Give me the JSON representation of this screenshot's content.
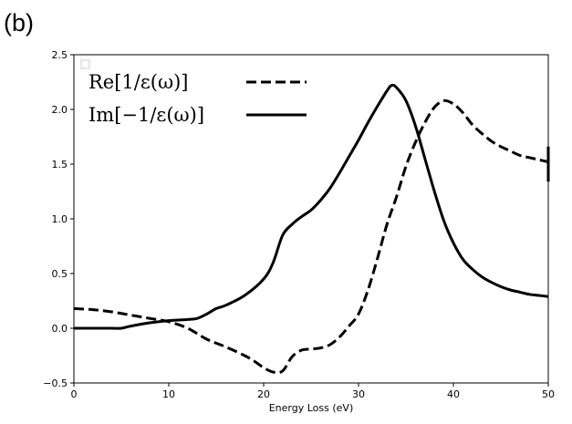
{
  "panel_label": "(b)",
  "chart_data": {
    "type": "line",
    "title": "",
    "xlabel": "Energy Loss (eV)",
    "ylabel": "",
    "xlim": [
      0,
      50
    ],
    "ylim": [
      -0.5,
      2.5
    ],
    "xticks": [
      0,
      10,
      20,
      30,
      40,
      50
    ],
    "yticks": [
      -0.5,
      0.0,
      0.5,
      1.0,
      1.5,
      2.0,
      2.5
    ],
    "xtick_labels": [
      "0",
      "10",
      "20",
      "30",
      "40",
      "50"
    ],
    "ytick_labels": [
      "−0.5",
      "0.0",
      "0.5",
      "1.0",
      "1.5",
      "2.0",
      "2.5"
    ],
    "grid": false,
    "legend_position": "top-left",
    "series": [
      {
        "name": "Re[1/ε(ω)]",
        "style": "dashed",
        "color": "#000000",
        "x": [
          0,
          2,
          4,
          6,
          8,
          10,
          12,
          14,
          16,
          18,
          19,
          20,
          21,
          22,
          23,
          24,
          25,
          26,
          27,
          28,
          29,
          30,
          31,
          32,
          33,
          34,
          35,
          36,
          37,
          38,
          39,
          40,
          41,
          42,
          43,
          44,
          45,
          46,
          47,
          48,
          49,
          50
        ],
        "values": [
          0.18,
          0.17,
          0.15,
          0.12,
          0.09,
          0.06,
          0.0,
          -0.1,
          -0.17,
          -0.25,
          -0.3,
          -0.36,
          -0.4,
          -0.39,
          -0.26,
          -0.2,
          -0.19,
          -0.18,
          -0.15,
          -0.08,
          0.02,
          0.13,
          0.35,
          0.64,
          0.95,
          1.2,
          1.48,
          1.7,
          1.88,
          2.02,
          2.08,
          2.05,
          1.97,
          1.86,
          1.78,
          1.71,
          1.66,
          1.62,
          1.58,
          1.56,
          1.54,
          1.52
        ]
      },
      {
        "name": "Im[−1/ε(ω)]",
        "style": "solid",
        "color": "#000000",
        "x": [
          0,
          2,
          4,
          5,
          6,
          8,
          10,
          12,
          13,
          14,
          15,
          16,
          18,
          20,
          21,
          22,
          23,
          24,
          25,
          26,
          27,
          28,
          29,
          30,
          31,
          32,
          33,
          33.5,
          34,
          35,
          36,
          37,
          38,
          39,
          40,
          41,
          42,
          43,
          44,
          45,
          46,
          47,
          48,
          49,
          50
        ],
        "values": [
          0.0,
          0.0,
          0.0,
          0.0,
          0.02,
          0.05,
          0.07,
          0.08,
          0.09,
          0.13,
          0.18,
          0.21,
          0.3,
          0.45,
          0.6,
          0.85,
          0.95,
          1.02,
          1.08,
          1.17,
          1.28,
          1.42,
          1.57,
          1.72,
          1.88,
          2.03,
          2.17,
          2.22,
          2.2,
          2.08,
          1.85,
          1.55,
          1.25,
          0.98,
          0.78,
          0.63,
          0.54,
          0.47,
          0.42,
          0.38,
          0.35,
          0.33,
          0.31,
          0.3,
          0.29
        ]
      }
    ]
  }
}
